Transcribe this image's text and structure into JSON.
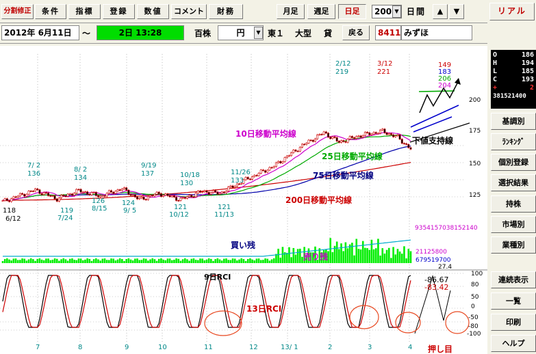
{
  "toolbar": {
    "split": "分割修正",
    "cond": "条件",
    "idx": "指標",
    "reg": "登録",
    "val": "数値",
    "comment": "コメント",
    "fin": "財務",
    "month": "月足",
    "week": "週足",
    "day": "日足",
    "count": "200",
    "unit": "日間",
    "up": "▲",
    "down": "▼",
    "real": "リアル"
  },
  "info": {
    "date": "2012年 6月11日",
    "tilde": "〜",
    "range": "2日 13:28",
    "unit_price": "百株",
    "currency": "円",
    "market": "東１",
    "size": "大型",
    "lend": "貸",
    "back": "戻る",
    "code": "8411",
    "name": "みずほ"
  },
  "quote": [
    {
      "k": "O",
      "v": "186"
    },
    {
      "k": "H",
      "v": "194"
    },
    {
      "k": "L",
      "v": "185"
    },
    {
      "k": "C",
      "v": "193"
    },
    {
      "k": "+",
      "v": "2"
    },
    {
      "k": "",
      "v": "381521400"
    }
  ],
  "side_menu": [
    "基調別",
    "ﾗﾝｷﾝｸﾞ",
    "個別登録",
    "選択結果",
    "持株",
    "市場別",
    "業種別"
  ],
  "side_menu2": [
    "連続表示",
    "一覧",
    "印刷",
    "ヘルプ"
  ],
  "chart_labels": {
    "ma10": "10日移動平均線",
    "ma25": "25日移動平均線",
    "ma75": "75日移動平均線",
    "ma200": "200日移動平均線",
    "support": "下値支持線",
    "buy": "買い残",
    "sell": "売り残",
    "rci9": "9日RCI",
    "rci13": "13日RCI",
    "push": "押し目",
    "pk1": "7/ 2",
    "pk1v": "136",
    "pk2": "8/ 2",
    "pk2v": "134",
    "pk3": "9/19",
    "pk3v": "137",
    "pk4": "10/18",
    "pk4v": "130",
    "pk5": "11/26",
    "pk5v": "133",
    "pk6": "2/12",
    "pk6v": "219",
    "pk7": "3/12",
    "pk7v": "221",
    "lo1": "118",
    "lo1d": "6/12",
    "lo2": "119",
    "lo2d": "7/24",
    "lo3": "126",
    "lo3d": "8/15",
    "lo4": "124",
    "lo4d": "9/ 5",
    "lo5": "121",
    "lo5d": "10/12",
    "lo6": "121",
    "lo6d": "11/13",
    "q1": "149",
    "q2": "183",
    "q3": "206",
    "q4": "204",
    "vol1": "9354157038152140",
    "vol2": "21125800",
    "vol3": "679519700",
    "vol4": "27.4",
    "rci1": "-86.67",
    "rci2": "-83.42",
    "pa": "200",
    "pb": "175",
    "pc": "150",
    "pd": "125",
    "ra": "100",
    "rb": "80",
    "rc": "50",
    "rd": "0",
    "re": "-50",
    "rf": "-80",
    "rg": "-100",
    "m7": "7",
    "m8": "8",
    "m9": "9",
    "m10": "10",
    "m11": "11",
    "m12": "12",
    "m13": "13/ 1",
    "m2": "2",
    "m3": "3",
    "m4": "4"
  },
  "colors": {
    "candle": "#cc0000",
    "ma10": "#cc00cc",
    "ma25": "#00aa00",
    "ma75": "#000080",
    "ma200": "#cc0000",
    "volume": "#00ee00",
    "quote_bg": "#000000",
    "highlight": "#00dd00"
  }
}
